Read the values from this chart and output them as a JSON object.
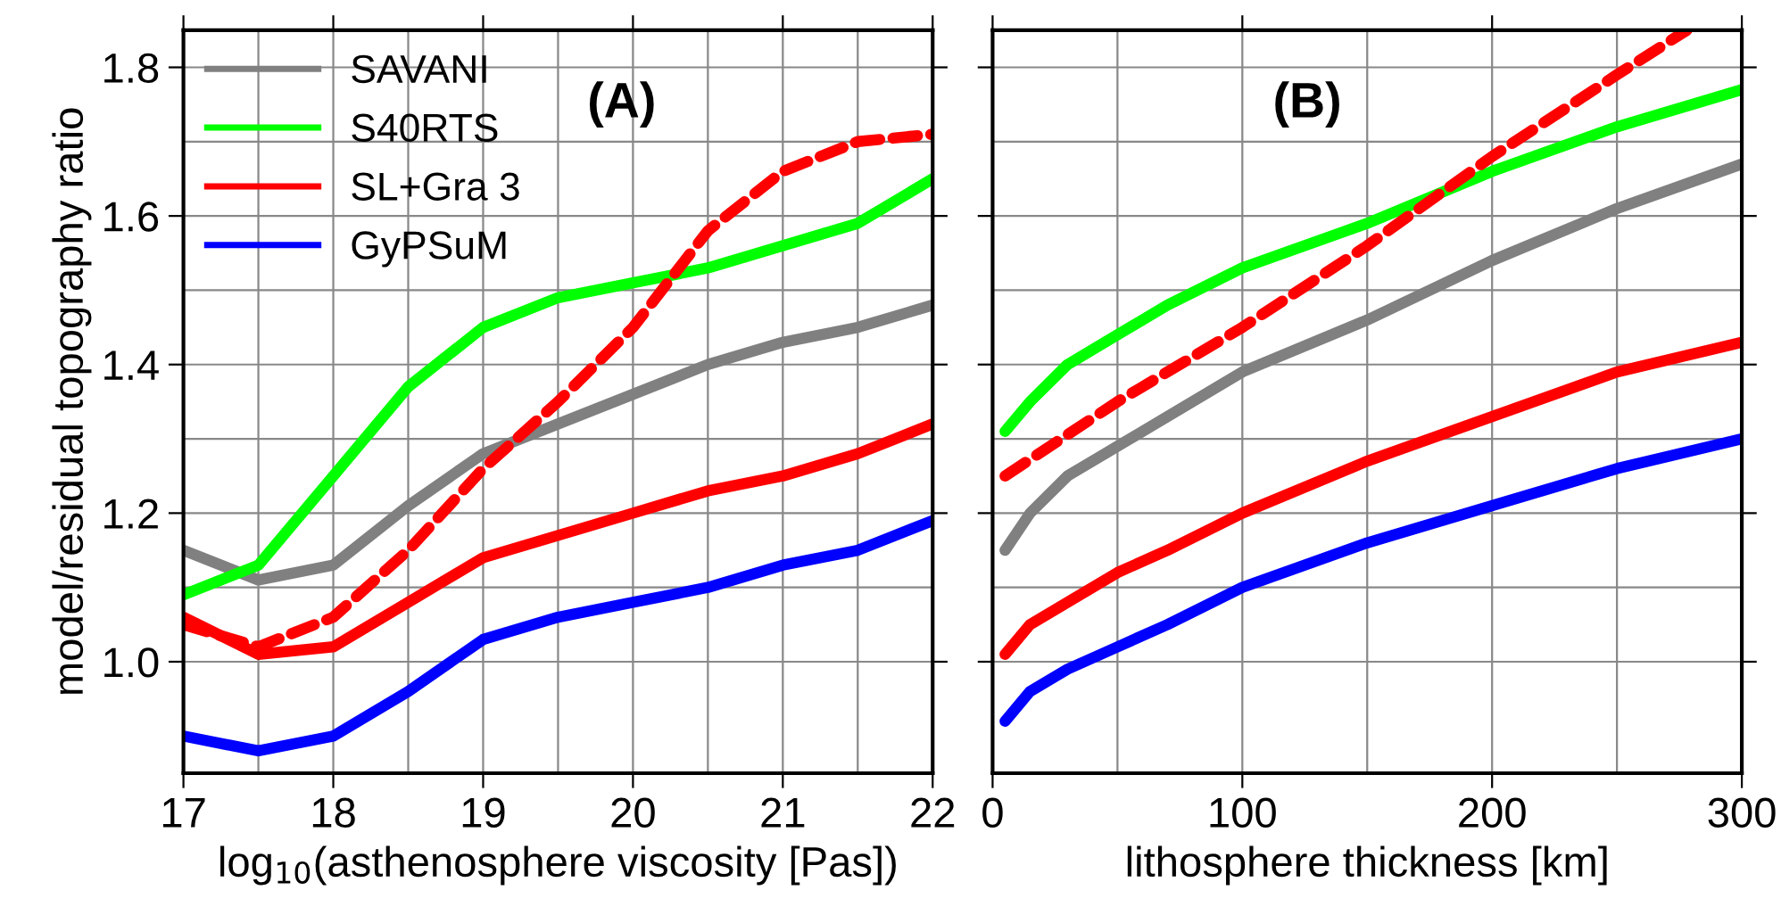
{
  "chart_data": [
    {
      "type": "line",
      "xlabel": "log$_{10}$(asthenosphere viscosity [Pas])",
      "ylabel": "model/residual topography ratio",
      "annotations": [
        "(A)"
      ],
      "x": [
        17,
        17.5,
        18,
        18.5,
        19,
        19.5,
        20,
        20.5,
        21,
        21.5,
        22
      ],
      "xlim": [
        17,
        22
      ],
      "xticks": [
        17,
        18,
        19,
        20,
        21,
        22
      ],
      "ylim": [
        0.85,
        1.85
      ],
      "yticks": [
        {
          "value": 1.0,
          "label": "1.0"
        },
        1.2,
        1.4,
        1.6,
        1.8
      ],
      "grid": true,
      "legend": "top left",
      "line_style": "solid",
      "marker": "none",
      "series": [
        {
          "name": "SAVANI",
          "color": "#808080",
          "values": [
            1.15,
            1.11,
            1.13,
            1.21,
            1.28,
            1.32,
            1.36,
            1.4,
            1.43,
            1.45,
            1.48
          ]
        },
        {
          "name": "S40RTS",
          "color": "#00ff00",
          "values": [
            1.09,
            1.13,
            1.25,
            1.37,
            1.45,
            1.49,
            1.51,
            1.53,
            1.56,
            1.59,
            1.65
          ]
        },
        {
          "name": "SL+Gra 3",
          "color": "#ff0000",
          "values": [
            1.06,
            1.01,
            1.02,
            1.08,
            1.14,
            1.17,
            1.2,
            1.23,
            1.25,
            1.28,
            1.32
          ]
        },
        {
          "name": "GyPSuM",
          "color": "#0000ff",
          "values": [
            0.9,
            0.88,
            0.9,
            0.96,
            1.03,
            1.06,
            1.08,
            1.1,
            1.13,
            1.15,
            1.19
          ]
        },
        {
          "color": "#ff0000",
          "line_style": "dashed",
          "values": [
            1.05,
            1.02,
            1.06,
            1.15,
            1.26,
            1.35,
            1.45,
            1.58,
            1.66,
            1.7,
            1.71
          ]
        }
      ]
    },
    {
      "type": "line",
      "xlabel": "lithosphere thickness [km]",
      "annotations": [
        "(B)"
      ],
      "x": [
        5,
        15,
        30,
        50,
        70,
        100,
        150,
        200,
        250,
        300
      ],
      "xlim": [
        0,
        300
      ],
      "xticks": [
        0,
        100,
        200,
        300
      ],
      "ylim": [
        0.85,
        1.85
      ],
      "yticks": [
        {
          "value": 1.0,
          "label": null
        },
        {
          "value": 1.2,
          "label": null
        },
        {
          "value": 1.4,
          "label": null
        },
        {
          "value": 1.6,
          "label": null
        },
        {
          "value": 1.8,
          "label": null
        }
      ],
      "tick_labels": "x",
      "grid": true,
      "line_style": "solid",
      "marker": "none",
      "series": [
        {
          "color": "#00ff00",
          "values": [
            1.31,
            1.35,
            1.4,
            1.44,
            1.48,
            1.53,
            1.59,
            1.66,
            1.72,
            1.77
          ]
        },
        {
          "color": "#808080",
          "values": [
            1.15,
            1.2,
            1.25,
            1.29,
            1.33,
            1.39,
            1.46,
            1.54,
            1.61,
            1.67
          ]
        },
        {
          "color": "#ff0000",
          "values": [
            1.01,
            1.05,
            1.08,
            1.12,
            1.15,
            1.2,
            1.27,
            1.33,
            1.39,
            1.43
          ]
        },
        {
          "color": "#0000ff",
          "values": [
            0.92,
            0.96,
            0.99,
            1.02,
            1.05,
            1.1,
            1.16,
            1.21,
            1.26,
            1.3
          ]
        },
        {
          "color": "#ff0000",
          "line_style": "dashed",
          "x": [
            5,
            50,
            100,
            150,
            200,
            250,
            278
          ],
          "values": [
            1.25,
            1.35,
            1.45,
            1.56,
            1.68,
            1.79,
            1.85
          ]
        }
      ]
    }
  ]
}
